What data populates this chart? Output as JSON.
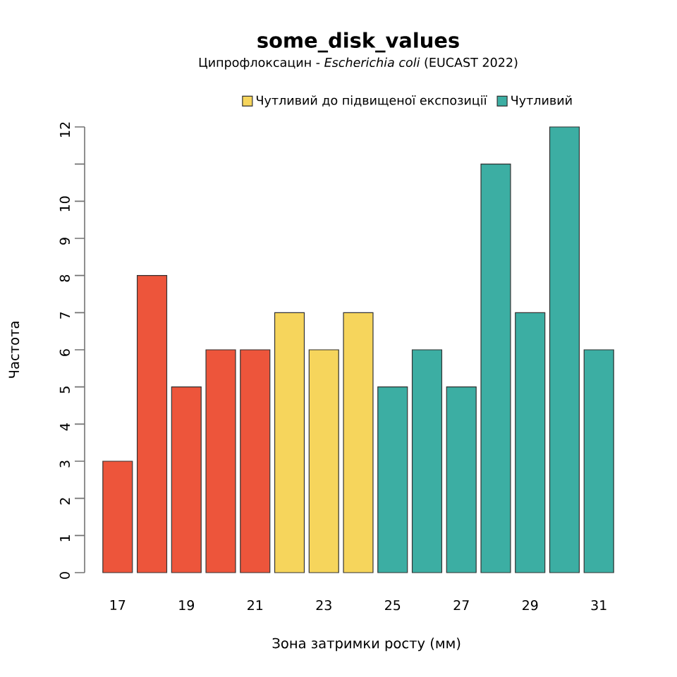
{
  "chart_data": {
    "type": "bar",
    "title": "some_disk_values",
    "subtitle": "Ципрофлоксацин - *Escherichia coli* (EUCAST 2022)",
    "xlabel": "Зона затримки росту (мм)",
    "ylabel": "Частота",
    "categories": [
      "17",
      null,
      "19",
      null,
      "21",
      null,
      "23",
      null,
      "25",
      null,
      "27",
      null,
      "29",
      null,
      "31"
    ],
    "series": [
      {
        "color": "#ed553b",
        "values": [
          3,
          8,
          5,
          6,
          6,
          null,
          null,
          null,
          null,
          null,
          null,
          null,
          null,
          null,
          null
        ]
      },
      {
        "name": "Чутливий до підвищеної експозиції",
        "color": "#f6d55c",
        "values": [
          null,
          null,
          null,
          null,
          null,
          7,
          6,
          7,
          null,
          null,
          null,
          null,
          null,
          null,
          null
        ]
      },
      {
        "name": "Чутливий",
        "color": "#3caea3",
        "values": [
          null,
          null,
          null,
          null,
          null,
          null,
          null,
          null,
          5,
          6,
          5,
          11,
          7,
          12,
          6
        ]
      }
    ],
    "ylim": [
      0,
      12
    ],
    "yticks": [
      0,
      1,
      2,
      3,
      4,
      5,
      6,
      7,
      8,
      9,
      10,
      {
        "value": 11,
        "label": null
      },
      12
    ],
    "legend": "top right"
  }
}
